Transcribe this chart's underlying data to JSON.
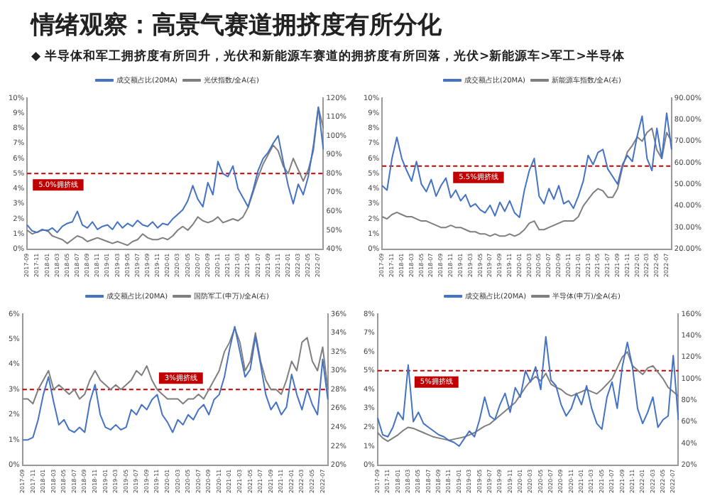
{
  "chart_data": [
    {
      "type": "line",
      "title": "情绪观察：高景气赛道拥挤度有所分化",
      "subtitle": "◆ 半导体和军工拥挤度有所回升，光伏和新能源车赛道的拥挤度有所回落，光伏>新能源车>军工>半导体",
      "categories": [
        "2017-09",
        null,
        "2017-11",
        null,
        "2018-01",
        null,
        "2018-03",
        null,
        "2018-05",
        null,
        "2018-07",
        null,
        "2018-09",
        null,
        "2018-11",
        null,
        "2019-01",
        null,
        "2019-03",
        null,
        "2019-05",
        null,
        "2019-07",
        null,
        "2019-09",
        null,
        "2019-11",
        null,
        "2020-01",
        null,
        "2020-03",
        null,
        "2020-05",
        null,
        "2020-07",
        null,
        "2020-09",
        null,
        "2020-11",
        null,
        "2021-01",
        null,
        "2021-03",
        null,
        "2021-05",
        null,
        "2021-07",
        null,
        "2021-09",
        null,
        "2021-11",
        null,
        "2022-01",
        null,
        "2022-03",
        null,
        "2022-05",
        null,
        "2022-07",
        null
      ],
      "series": [
        {
          "name": "成交额占比(20MA)",
          "color": "#4472c4",
          "values": [
            1.6,
            1.2,
            1.1,
            1.3,
            1.2,
            1.4,
            1.1,
            1.5,
            1.7,
            1.8,
            2.5,
            1.6,
            1.4,
            1.8,
            1.3,
            1.5,
            1.6,
            1.3,
            1.8,
            1.4,
            1.7,
            1.5,
            1.9,
            1.6,
            1.5,
            1.8,
            1.4,
            1.7,
            1.6,
            2.0,
            2.3,
            2.6,
            3.2,
            4.2,
            3.3,
            2.8,
            4.4,
            3.6,
            5.8,
            5.0,
            4.8,
            5.5,
            4.0,
            3.4,
            2.8,
            3.9,
            5.2,
            6.0,
            6.4,
            7.0,
            7.5,
            5.8,
            4.2,
            3.0,
            4.3,
            3.6,
            4.8,
            6.8,
            9.4,
            6.6
          ]
        },
        {
          "name": "光伏指数/全A(右)",
          "color": "#7f7f7f",
          "axis": "y2",
          "values": [
            50,
            48,
            49,
            50,
            50,
            47,
            46,
            45,
            43,
            45,
            47,
            46,
            44,
            45,
            46,
            45,
            44,
            43,
            44,
            43,
            42,
            44,
            45,
            48,
            46,
            45,
            45,
            46,
            45,
            47,
            50,
            52,
            50,
            53,
            57,
            55,
            54,
            55,
            57,
            54,
            55,
            56,
            55,
            57,
            62,
            70,
            78,
            85,
            90,
            95,
            92,
            84,
            80,
            88,
            82,
            76,
            82,
            92,
            115,
            104
          ]
        }
      ],
      "ylim": [
        0,
        10
      ],
      "yticks": [
        {
          "value": 0,
          "label": "0%"
        },
        {
          "value": 1,
          "label": "1%"
        },
        {
          "value": 2,
          "label": "2%"
        },
        {
          "value": 3,
          "label": "3%"
        },
        {
          "value": 4,
          "label": "4%"
        },
        {
          "value": 5,
          "label": "5%"
        },
        {
          "value": 6,
          "label": "6%"
        },
        {
          "value": 7,
          "label": "7%"
        },
        {
          "value": 8,
          "label": "8%"
        },
        {
          "value": 9,
          "label": "9%"
        },
        {
          "value": 10,
          "label": "10%"
        }
      ],
      "y2lim": [
        40,
        120
      ],
      "y2ticks": [
        {
          "value": 40,
          "label": "40%"
        },
        {
          "value": 50,
          "label": "50%"
        },
        {
          "value": 60,
          "label": "60%"
        },
        {
          "value": 70,
          "label": "70%"
        },
        {
          "value": 80,
          "label": "80%"
        },
        {
          "value": 90,
          "label": "90%"
        },
        {
          "value": 100,
          "label": "100%"
        },
        {
          "value": 110,
          "label": "110%"
        },
        {
          "value": 120,
          "label": "120%"
        }
      ],
      "ref_lines": [
        {
          "axis": "y",
          "value": 5,
          "label": "5.0%拥挤线",
          "color": "#c00000",
          "line_style": "dashed"
        }
      ],
      "legend": "top",
      "marker": "none"
    },
    {
      "type": "line",
      "categories": [
        "2017-09",
        null,
        "2017-11",
        null,
        "2018-01",
        null,
        "2018-03",
        null,
        "2018-05",
        null,
        "2018-07",
        null,
        "2018-09",
        null,
        "2018-11",
        null,
        "2019-01",
        null,
        "2019-03",
        null,
        "2019-05",
        null,
        "2019-07",
        null,
        "2019-09",
        null,
        "2019-11",
        null,
        "2020-01",
        null,
        "2020-03",
        null,
        "2020-05",
        null,
        "2020-07",
        null,
        "2020-09",
        null,
        "2020-11",
        null,
        "2021-01",
        null,
        "2021-03",
        null,
        "2021-05",
        null,
        "2021-07",
        null,
        "2021-09",
        null,
        "2021-11",
        null,
        "2022-01",
        null,
        "2022-03",
        null,
        "2022-05",
        null,
        "2022-07",
        null
      ],
      "series": [
        {
          "name": "成交额占比(20MA)",
          "color": "#4472c4",
          "values": [
            4.2,
            3.9,
            6.0,
            7.4,
            6.0,
            5.2,
            4.5,
            5.8,
            4.3,
            3.8,
            4.6,
            3.5,
            4.2,
            4.7,
            3.4,
            3.9,
            3.2,
            3.6,
            2.8,
            3.0,
            2.6,
            2.4,
            2.9,
            2.2,
            3.1,
            2.5,
            3.2,
            2.4,
            2.1,
            3.9,
            5.2,
            6.0,
            3.5,
            3.0,
            4.0,
            3.3,
            4.2,
            3.0,
            3.2,
            2.7,
            3.5,
            4.5,
            6.2,
            5.6,
            6.4,
            6.6,
            5.3,
            4.8,
            4.3,
            5.6,
            6.2,
            5.8,
            7.5,
            8.8,
            6.0,
            5.2,
            8.0,
            6.0,
            9.0,
            6.6
          ]
        },
        {
          "name": "新能源车指数/全A(右)",
          "color": "#7f7f7f",
          "axis": "y2",
          "values": [
            35,
            34,
            36,
            37,
            36,
            35,
            35,
            34,
            33,
            33,
            32,
            31,
            30,
            30,
            31,
            30,
            30,
            29,
            28,
            28,
            27,
            27,
            26,
            27,
            26,
            26,
            27,
            26,
            27,
            29,
            32,
            33,
            29,
            29,
            30,
            31,
            32,
            33,
            33,
            33,
            35,
            40,
            43,
            46,
            48,
            47,
            44,
            44,
            48,
            58,
            65,
            68,
            72,
            70,
            74,
            76,
            66,
            62,
            74,
            70
          ]
        }
      ],
      "ylim": [
        0,
        10
      ],
      "yticks": [
        {
          "value": 0,
          "label": "0%"
        },
        {
          "value": 1,
          "label": "1%"
        },
        {
          "value": 2,
          "label": "2%"
        },
        {
          "value": 3,
          "label": "3%"
        },
        {
          "value": 4,
          "label": "4%"
        },
        {
          "value": 5,
          "label": "5%"
        },
        {
          "value": 6,
          "label": "6%"
        },
        {
          "value": 7,
          "label": "7%"
        },
        {
          "value": 8,
          "label": "8%"
        },
        {
          "value": 9,
          "label": "9%"
        },
        {
          "value": 10,
          "label": "10%"
        }
      ],
      "y2lim": [
        20,
        90
      ],
      "y2ticks": [
        {
          "value": 20,
          "label": "20.00%"
        },
        {
          "value": 30,
          "label": "30.00%"
        },
        {
          "value": 40,
          "label": "40.00%"
        },
        {
          "value": 50,
          "label": "50.00%"
        },
        {
          "value": 60,
          "label": "60.00%"
        },
        {
          "value": 70,
          "label": "70.00%"
        },
        {
          "value": 80,
          "label": "80.00%"
        },
        {
          "value": 90,
          "label": "90.00%"
        }
      ],
      "ref_lines": [
        {
          "axis": "y",
          "value": 5.5,
          "label": "5.5%拥挤线",
          "color": "#c00000",
          "line_style": "dashed"
        }
      ],
      "legend": "top",
      "marker": "none"
    },
    {
      "type": "line",
      "categories": [
        "2017-09",
        null,
        "2017-11",
        null,
        "2018-01",
        null,
        "2018-03",
        null,
        "2018-05",
        null,
        "2018-07",
        null,
        "2018-09",
        null,
        "2018-11",
        null,
        "2019-01",
        null,
        "2019-03",
        null,
        "2019-05",
        null,
        "2019-07",
        null,
        "2019-09",
        null,
        "2019-11",
        null,
        "2020-01",
        null,
        "2020-03",
        null,
        "2020-05",
        null,
        "2020-07",
        null,
        "2020-09",
        null,
        "2020-11",
        null,
        "2021-01",
        null,
        "2021-03",
        null,
        "2021-05",
        null,
        "2021-07",
        null,
        "2021-09",
        null,
        "2021-11",
        null,
        "2022-01",
        null,
        "2022-03",
        null,
        "2022-05",
        null,
        "2022-07",
        null
      ],
      "series": [
        {
          "name": "成交额占比(20MA)",
          "color": "#4472c4",
          "values": [
            1.0,
            1.0,
            1.1,
            1.8,
            2.8,
            3.5,
            2.5,
            1.6,
            1.8,
            1.4,
            1.3,
            1.5,
            1.3,
            2.5,
            3.2,
            2.0,
            1.5,
            1.4,
            1.6,
            1.4,
            1.5,
            2.2,
            2.0,
            2.4,
            2.2,
            2.6,
            2.8,
            2.0,
            1.7,
            1.3,
            1.8,
            1.6,
            2.0,
            1.8,
            2.2,
            2.4,
            2.0,
            2.6,
            2.8,
            3.5,
            4.6,
            5.5,
            4.5,
            3.5,
            3.8,
            5.1,
            4.0,
            2.8,
            2.2,
            2.5,
            2.0,
            2.3,
            3.6,
            2.8,
            2.2,
            3.0,
            2.4,
            2.0,
            4.2,
            2.6
          ]
        },
        {
          "name": "国防军工(申万)/全A(右)",
          "color": "#7f7f7f",
          "axis": "y2",
          "values": [
            27,
            27,
            26.5,
            28,
            29,
            30,
            28,
            28.5,
            28,
            27.5,
            28,
            27,
            27.5,
            29,
            30,
            29,
            28.5,
            28,
            28.5,
            28,
            28.5,
            29,
            30,
            29.5,
            30.5,
            29,
            28,
            27.5,
            27,
            27,
            27,
            26.5,
            27,
            27,
            27.5,
            27,
            28,
            29,
            30,
            32,
            33,
            34.5,
            33,
            30,
            31,
            34,
            31,
            29,
            28,
            28,
            27.5,
            29,
            31,
            30,
            33,
            33.5,
            31,
            30,
            32.5,
            28
          ]
        }
      ],
      "ylim": [
        0,
        6
      ],
      "yticks": [
        {
          "value": 0,
          "label": "0%"
        },
        {
          "value": 1,
          "label": "1%"
        },
        {
          "value": 2,
          "label": "2%"
        },
        {
          "value": 3,
          "label": "3%"
        },
        {
          "value": 4,
          "label": "4%"
        },
        {
          "value": 5,
          "label": "5%"
        },
        {
          "value": 6,
          "label": "6%"
        }
      ],
      "y2lim": [
        20,
        36
      ],
      "y2ticks": [
        {
          "value": 20,
          "label": "20%"
        },
        {
          "value": 22,
          "label": "22%"
        },
        {
          "value": 24,
          "label": "24%"
        },
        {
          "value": 26,
          "label": "26%"
        },
        {
          "value": 28,
          "label": "28%"
        },
        {
          "value": 30,
          "label": "30%"
        },
        {
          "value": 32,
          "label": "32%"
        },
        {
          "value": 34,
          "label": "34%"
        },
        {
          "value": 36,
          "label": "36%"
        }
      ],
      "ref_lines": [
        {
          "axis": "y",
          "value": 3,
          "label": "3%拥挤线",
          "color": "#c00000",
          "line_style": "dashed"
        }
      ],
      "legend": "top",
      "marker": "none"
    },
    {
      "type": "line",
      "categories": [
        "2017-09",
        null,
        "2017-11",
        null,
        "2018-01",
        null,
        "2018-03",
        null,
        "2018-05",
        null,
        "2018-07",
        null,
        "2018-09",
        null,
        "2018-11",
        null,
        "2019-01",
        null,
        "2019-03",
        null,
        "2019-05",
        null,
        "2019-07",
        null,
        "2019-09",
        null,
        "2019-11",
        null,
        "2020-01",
        null,
        "2020-03",
        null,
        "2020-05",
        null,
        "2020-07",
        null,
        "2020-09",
        null,
        "2020-11",
        null,
        "2021-01",
        null,
        "2021-03",
        null,
        "2021-05",
        null,
        "2021-07",
        null,
        "2021-09",
        null,
        "2021-11",
        null,
        "2022-01",
        null,
        "2022-03",
        null,
        "2022-05",
        null,
        "2022-07",
        null
      ],
      "series": [
        {
          "name": "成交额占比(20MA)",
          "color": "#4472c4",
          "values": [
            2.5,
            1.6,
            1.5,
            2.0,
            2.8,
            2.4,
            5.3,
            2.3,
            2.8,
            2.2,
            2.0,
            1.8,
            1.6,
            1.5,
            1.3,
            1.2,
            1.0,
            1.4,
            1.8,
            1.5,
            2.4,
            3.6,
            2.6,
            2.4,
            3.2,
            3.8,
            2.8,
            4.1,
            3.6,
            5.0,
            4.4,
            5.2,
            4.0,
            6.8,
            4.5,
            4.2,
            3.2,
            2.6,
            3.0,
            3.8,
            3.2,
            4.2,
            3.0,
            2.2,
            1.9,
            3.6,
            4.4,
            3.0,
            5.2,
            6.5,
            5.2,
            3.0,
            2.2,
            2.8,
            3.6,
            2.0,
            2.4,
            2.6,
            5.8,
            2.4
          ]
        },
        {
          "name": "半导体(申万)/全A(右)",
          "color": "#7f7f7f",
          "axis": "y2",
          "values": [
            50,
            45,
            42,
            45,
            48,
            52,
            55,
            54,
            52,
            50,
            48,
            46,
            45,
            44,
            43,
            44,
            45,
            46,
            48,
            50,
            53,
            56,
            58,
            62,
            66,
            70,
            74,
            78,
            85,
            92,
            98,
            102,
            98,
            105,
            95,
            92,
            90,
            86,
            84,
            86,
            88,
            90,
            88,
            86,
            90,
            95,
            100,
            110,
            120,
            125,
            112,
            108,
            104,
            110,
            112,
            106,
            100,
            92,
            88,
            84
          ]
        }
      ],
      "ylim": [
        0,
        8
      ],
      "yticks": [
        {
          "value": 0,
          "label": "0%"
        },
        {
          "value": 1,
          "label": "1%"
        },
        {
          "value": 2,
          "label": "2%"
        },
        {
          "value": 3,
          "label": "3%"
        },
        {
          "value": 4,
          "label": "4%"
        },
        {
          "value": 5,
          "label": "5%"
        },
        {
          "value": 6,
          "label": "6%"
        },
        {
          "value": 7,
          "label": "7%"
        },
        {
          "value": 8,
          "label": "8%"
        }
      ],
      "y2lim": [
        20,
        160
      ],
      "y2ticks": [
        {
          "value": 20,
          "label": "20%"
        },
        {
          "value": 40,
          "label": "40%"
        },
        {
          "value": 60,
          "label": "60%"
        },
        {
          "value": 80,
          "label": "80%"
        },
        {
          "value": 100,
          "label": "100%"
        },
        {
          "value": 120,
          "label": "120%"
        },
        {
          "value": 140,
          "label": "140%"
        },
        {
          "value": 160,
          "label": "160%"
        }
      ],
      "ref_lines": [
        {
          "axis": "y",
          "value": 5,
          "label": "5%拥挤线",
          "color": "#c00000",
          "line_style": "dashed"
        }
      ],
      "legend": "top",
      "marker": "none"
    }
  ]
}
